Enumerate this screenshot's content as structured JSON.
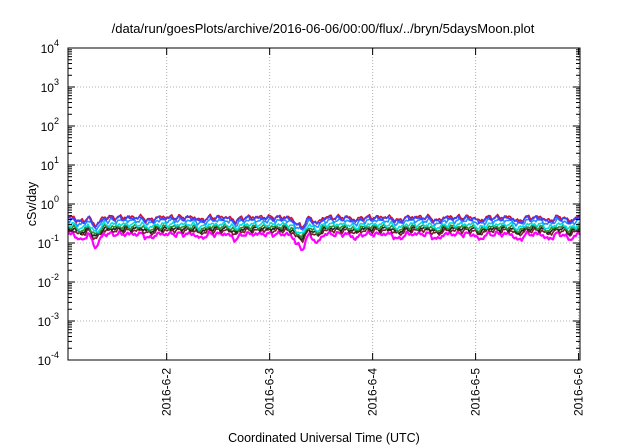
{
  "chart_data": {
    "type": "line",
    "title": "/data/run/goesPlots/archive/2016-06-06/00:00/flux/../bryn/5daysMoon.plot",
    "xlabel": "Coordinated Universal Time (UTC)",
    "ylabel": "cSv/day",
    "y_scale": "log",
    "ylim": [
      0.0001,
      10000
    ],
    "y_ticks": [
      {
        "base": "10",
        "exp": "-4",
        "value": 0.0001
      },
      {
        "base": "10",
        "exp": "-3",
        "value": 0.001
      },
      {
        "base": "10",
        "exp": "-2",
        "value": 0.01
      },
      {
        "base": "10",
        "exp": "-1",
        "value": 0.1
      },
      {
        "base": "10",
        "exp": "0",
        "value": 1
      },
      {
        "base": "10",
        "exp": "1",
        "value": 10
      },
      {
        "base": "10",
        "exp": "2",
        "value": 100
      },
      {
        "base": "10",
        "exp": "3",
        "value": 1000
      },
      {
        "base": "10",
        "exp": "4",
        "value": 10000
      }
    ],
    "xlim": [
      "2016-06-01T01:00",
      "2016-06-06T00:20"
    ],
    "x_ticks": [
      "2016-6-2",
      "2016-6-3",
      "2016-6-4",
      "2016-6-5",
      "2016-6-6"
    ],
    "x_tick_dates": [
      "2016-06-02T00:00",
      "2016-06-03T00:00",
      "2016-06-04T00:00",
      "2016-06-05T00:00",
      "2016-06-06T00:00"
    ],
    "grid": true,
    "series": [
      {
        "color": "#ff00ff",
        "level": 0.17
      },
      {
        "color": "#7a1d2e",
        "level": 0.21
      },
      {
        "color": "#222222",
        "level": 0.235
      },
      {
        "color": "#2c8c2c",
        "level": 0.26
      },
      {
        "color": "#00dddd",
        "level": 0.3
      },
      {
        "color": "#1e90ff",
        "level": 0.38
      },
      {
        "color": "#d0102a",
        "level": 0.46
      },
      {
        "color": "#4040ff",
        "level": 0.43
      }
    ],
    "dips": [
      {
        "x": "2016-06-01T04:00",
        "depth": 0.35
      },
      {
        "x": "2016-06-01T07:30",
        "depth": 0.6
      },
      {
        "x": "2016-06-01T20:00",
        "depth": 0.25
      },
      {
        "x": "2016-06-02T08:00",
        "depth": 0.25
      },
      {
        "x": "2016-06-02T16:00",
        "depth": 0.3
      },
      {
        "x": "2016-06-03T06:00",
        "depth": 0.3
      },
      {
        "x": "2016-06-03T07:30",
        "depth": 0.65
      },
      {
        "x": "2016-06-03T11:00",
        "depth": 0.45
      },
      {
        "x": "2016-06-03T20:00",
        "depth": 0.25
      },
      {
        "x": "2016-06-04T06:00",
        "depth": 0.3
      },
      {
        "x": "2016-06-04T15:00",
        "depth": 0.3
      },
      {
        "x": "2016-06-05T01:00",
        "depth": 0.3
      },
      {
        "x": "2016-06-05T10:00",
        "depth": 0.35
      },
      {
        "x": "2016-06-05T17:00",
        "depth": 0.3
      },
      {
        "x": "2016-06-05T22:00",
        "depth": 0.3
      }
    ]
  }
}
